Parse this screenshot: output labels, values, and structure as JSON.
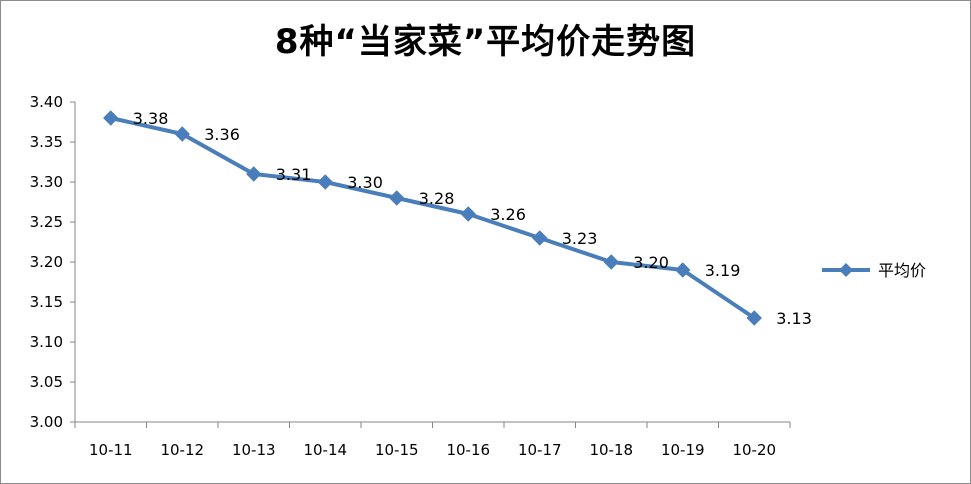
{
  "chart_data": {
    "type": "line",
    "title": "8种“当家菜”平均价走势图",
    "categories": [
      "10-11",
      "10-12",
      "10-13",
      "10-14",
      "10-15",
      "10-16",
      "10-17",
      "10-18",
      "10-19",
      "10-20"
    ],
    "series": [
      {
        "name": "平均价",
        "values": [
          3.38,
          3.36,
          3.31,
          3.3,
          3.28,
          3.26,
          3.23,
          3.2,
          3.19,
          3.13
        ],
        "labels": [
          "3.38",
          "3.36",
          "3.31",
          "3.30",
          "3.28",
          "3.26",
          "3.23",
          "3.20",
          "3.19",
          "3.13"
        ],
        "color": "#4a7ebb",
        "marker": "diamond"
      }
    ],
    "ylim": [
      3.0,
      3.4
    ],
    "yticks": [
      "3.00",
      "3.05",
      "3.10",
      "3.15",
      "3.20",
      "3.25",
      "3.30",
      "3.35",
      "3.40"
    ],
    "xlabel": "",
    "ylabel": "",
    "grid": false,
    "legend_position": "right"
  }
}
